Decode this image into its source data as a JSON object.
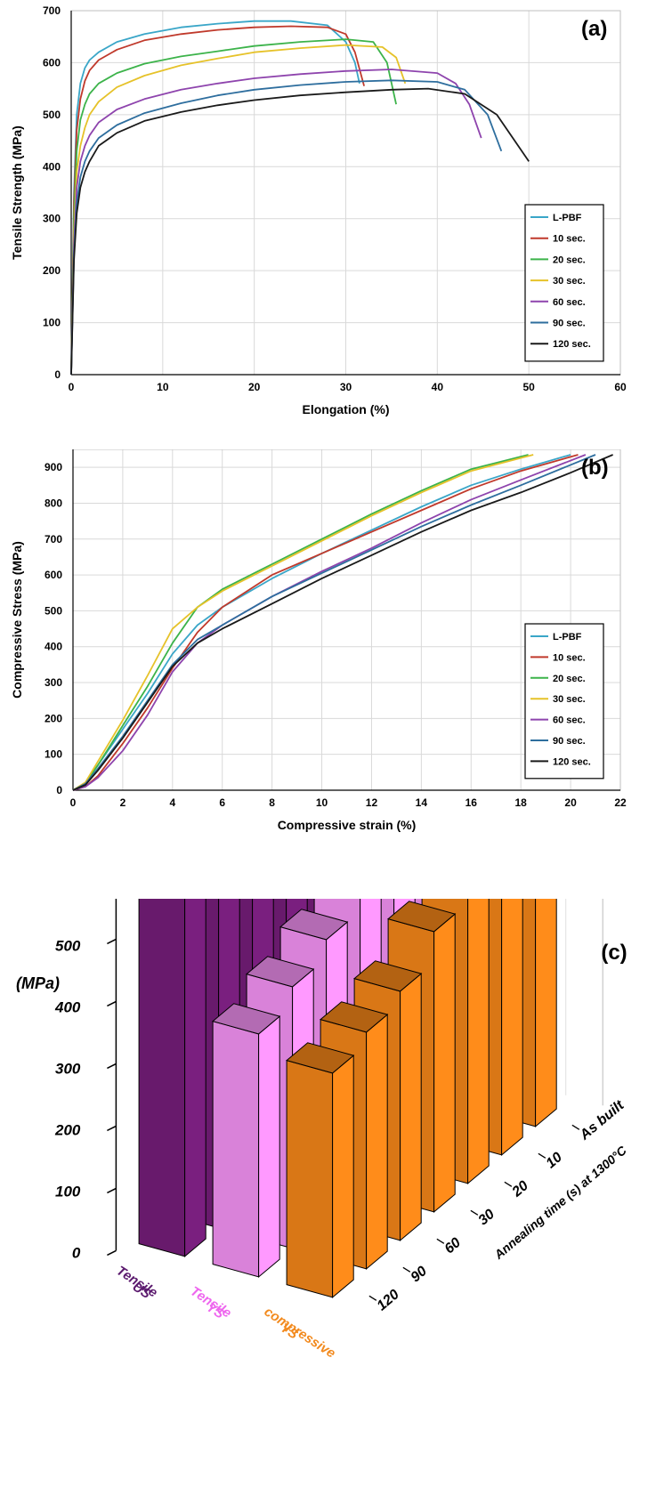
{
  "chart_data": [
    {
      "type": "line",
      "panel_label": "(a)",
      "xlabel": "Elongation (%)",
      "ylabel": "Tensile Strength (MPa)",
      "xlim": [
        0,
        60
      ],
      "ylim": [
        0,
        700
      ],
      "xticks": [
        "0",
        "10",
        "20",
        "30",
        "40",
        "50",
        "60"
      ],
      "yticks": [
        "0",
        "100",
        "200",
        "300",
        "400",
        "500",
        "600",
        "700"
      ],
      "grid": true,
      "legend_position": "bottom-right",
      "series": [
        {
          "name": "L-PBF",
          "color": "#3aa6c8",
          "x": [
            0,
            0.3,
            0.6,
            1,
            1.5,
            2,
            3,
            5,
            8,
            12,
            16,
            20,
            24,
            28,
            30,
            31,
            31.5
          ],
          "y": [
            0,
            350,
            500,
            560,
            590,
            605,
            620,
            640,
            655,
            668,
            675,
            680,
            680,
            672,
            640,
            600,
            560
          ]
        },
        {
          "name": "10 sec.",
          "color": "#c0392b",
          "x": [
            0,
            0.3,
            0.6,
            1,
            1.5,
            2,
            3,
            5,
            8,
            12,
            16,
            20,
            24,
            28,
            30,
            31,
            32
          ],
          "y": [
            0,
            330,
            470,
            530,
            565,
            585,
            605,
            625,
            643,
            655,
            663,
            668,
            670,
            668,
            655,
            620,
            555
          ]
        },
        {
          "name": "20 sec.",
          "color": "#3cb34a",
          "x": [
            0,
            0.3,
            0.6,
            1,
            1.5,
            2,
            3,
            5,
            8,
            12,
            16,
            20,
            25,
            30,
            33,
            34.5,
            35.5
          ],
          "y": [
            0,
            300,
            430,
            490,
            520,
            540,
            560,
            580,
            598,
            612,
            622,
            632,
            640,
            645,
            640,
            600,
            520
          ]
        },
        {
          "name": "30 sec.",
          "color": "#e6c229",
          "x": [
            0,
            0.3,
            0.6,
            1,
            1.5,
            2,
            3,
            5,
            8,
            12,
            16,
            20,
            25,
            30,
            34,
            35.5,
            36.5
          ],
          "y": [
            0,
            270,
            390,
            440,
            475,
            500,
            525,
            553,
            575,
            595,
            608,
            620,
            628,
            634,
            630,
            610,
            560
          ]
        },
        {
          "name": "60 sec.",
          "color": "#8e44ad",
          "x": [
            0,
            0.3,
            0.6,
            1,
            1.5,
            2,
            3,
            5,
            8,
            12,
            16,
            20,
            25,
            30,
            35,
            40,
            42,
            43.5,
            44.8
          ],
          "y": [
            0,
            250,
            360,
            410,
            440,
            460,
            485,
            510,
            530,
            548,
            560,
            570,
            578,
            584,
            587,
            580,
            560,
            520,
            455
          ]
        },
        {
          "name": "90 sec.",
          "color": "#2e6e9e",
          "x": [
            0,
            0.3,
            0.6,
            1,
            1.5,
            2,
            3,
            5,
            8,
            12,
            16,
            20,
            25,
            30,
            35,
            40,
            43,
            45.5,
            47
          ],
          "y": [
            0,
            230,
            330,
            380,
            410,
            430,
            455,
            480,
            503,
            522,
            537,
            548,
            557,
            563,
            566,
            563,
            548,
            500,
            430
          ]
        },
        {
          "name": "120 sec.",
          "color": "#1a1a1a",
          "x": [
            0,
            0.3,
            0.6,
            1,
            1.5,
            2,
            3,
            5,
            8,
            12,
            16,
            20,
            25,
            30,
            35,
            39,
            43,
            46.5,
            50
          ],
          "y": [
            0,
            220,
            310,
            360,
            390,
            410,
            440,
            465,
            488,
            505,
            518,
            528,
            537,
            543,
            548,
            550,
            540,
            500,
            410
          ]
        }
      ]
    },
    {
      "type": "line",
      "panel_label": "(b)",
      "xlabel": "Compressive strain (%)",
      "ylabel": "Compressive Stress (MPa)",
      "xlim": [
        0,
        22
      ],
      "ylim": [
        0,
        950
      ],
      "xticks": [
        "0",
        "2",
        "4",
        "6",
        "8",
        "10",
        "12",
        "14",
        "16",
        "18",
        "20",
        "22"
      ],
      "yticks": [
        "0",
        "100",
        "200",
        "300",
        "400",
        "500",
        "600",
        "700",
        "800",
        "900"
      ],
      "grid": true,
      "legend_position": "bottom-right",
      "series": [
        {
          "name": "L-PBF",
          "color": "#3aa6c8",
          "x": [
            0,
            0.5,
            1,
            2,
            3,
            4,
            5,
            6,
            8,
            10,
            12,
            14,
            16,
            18,
            20
          ],
          "y": [
            0,
            20,
            70,
            170,
            270,
            380,
            460,
            510,
            590,
            660,
            725,
            790,
            850,
            895,
            935
          ]
        },
        {
          "name": "10 sec.",
          "color": "#c0392b",
          "x": [
            0,
            0.5,
            1,
            2,
            3,
            4,
            5,
            6,
            8,
            10,
            12,
            14,
            16,
            18,
            20.3
          ],
          "y": [
            0,
            10,
            40,
            130,
            230,
            340,
            440,
            510,
            600,
            660,
            720,
            780,
            840,
            890,
            935
          ]
        },
        {
          "name": "20 sec.",
          "color": "#3cb34a",
          "x": [
            0,
            0.5,
            1,
            2,
            3,
            4,
            5,
            6,
            8,
            10,
            12,
            14,
            16,
            18.3
          ],
          "y": [
            0,
            20,
            70,
            180,
            290,
            410,
            510,
            560,
            630,
            700,
            770,
            835,
            895,
            935
          ]
        },
        {
          "name": "30 sec.",
          "color": "#e6c229",
          "x": [
            0,
            0.5,
            1,
            2,
            3,
            4,
            5,
            6,
            8,
            10,
            12,
            14,
            16,
            18.5
          ],
          "y": [
            0,
            22,
            80,
            195,
            320,
            450,
            510,
            555,
            625,
            695,
            765,
            830,
            890,
            935
          ]
        },
        {
          "name": "60 sec.",
          "color": "#8e44ad",
          "x": [
            0,
            0.5,
            1,
            2,
            3,
            4,
            5,
            6,
            8,
            10,
            12,
            14,
            16,
            18,
            20.6
          ],
          "y": [
            0,
            10,
            35,
            110,
            210,
            330,
            410,
            460,
            540,
            610,
            675,
            745,
            810,
            865,
            935
          ]
        },
        {
          "name": "90 sec.",
          "color": "#2e6e9e",
          "x": [
            0,
            0.5,
            1,
            2,
            3,
            4,
            5,
            6,
            8,
            10,
            12,
            14,
            16,
            18,
            21
          ],
          "y": [
            0,
            18,
            60,
            150,
            250,
            350,
            420,
            460,
            540,
            605,
            670,
            735,
            795,
            850,
            935
          ]
        },
        {
          "name": "120 sec.",
          "color": "#1a1a1a",
          "x": [
            0,
            0.5,
            1,
            2,
            3,
            4,
            5,
            6,
            8,
            10,
            12,
            14,
            16,
            18,
            20,
            21.7
          ],
          "y": [
            0,
            15,
            55,
            145,
            245,
            345,
            410,
            450,
            520,
            590,
            655,
            720,
            780,
            830,
            885,
            935
          ]
        }
      ]
    },
    {
      "type": "bar3d",
      "panel_label": "(c)",
      "unit_label": "(MPa)",
      "zticks": [
        "0",
        "100",
        "200",
        "300",
        "400",
        "500",
        "600",
        "700"
      ],
      "zlim": [
        0,
        800
      ],
      "time_axis_label": "Annealing time (s) at 1300°C",
      "time_categories": [
        "120",
        "90",
        "60",
        "30",
        "20",
        "10",
        "As built"
      ],
      "groups": [
        {
          "line1": "Tensile",
          "line2": "US",
          "color": "#7a1f7f",
          "text_color": "#5b1a6e",
          "values": [
            590,
            600,
            620,
            650,
            670,
            680,
            680
          ]
        },
        {
          "line1": "Tensile",
          "line2": "YS",
          "color": "#ff99ff",
          "text_color": "#ee66ee",
          "values": [
            390,
            420,
            450,
            475,
            495,
            510,
            520
          ]
        },
        {
          "line1": "compressive",
          "line2": "YS",
          "color": "#ff8c1a",
          "text_color": "#f28a1e",
          "values": [
            360,
            380,
            400,
            450,
            460,
            470,
            480
          ]
        }
      ]
    }
  ]
}
